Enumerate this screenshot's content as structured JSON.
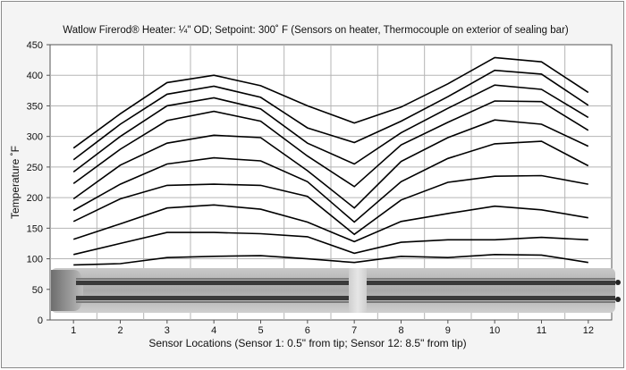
{
  "chart_data": {
    "type": "line",
    "title": "Watlow Firerod® Heater:  ¼\" OD; Setpoint: 300˚ F  (Sensors on heater, Thermocouple on exterior of sealing bar)",
    "xlabel": "Sensor Locations  (Sensor 1:  0.5\" from tip;  Sensor 12:  8.5\" from tip)",
    "ylabel": "Temperature ˚F",
    "x": [
      1,
      2,
      3,
      4,
      5,
      6,
      7,
      8,
      9,
      10,
      11,
      12
    ],
    "x_tick_labels": [
      "1",
      "2",
      "3",
      "4",
      "5",
      "6",
      "7",
      "8",
      "9",
      "10",
      "11",
      "12"
    ],
    "ylim": [
      0,
      450
    ],
    "y_ticks": [
      0,
      50,
      100,
      150,
      200,
      250,
      300,
      350,
      400,
      450
    ],
    "grid": true,
    "line_color": "#000000",
    "series": [
      {
        "values": [
          90,
          92,
          102,
          104,
          105,
          100,
          94,
          104,
          102,
          107,
          106,
          94
        ]
      },
      {
        "values": [
          107,
          125,
          143,
          143,
          141,
          136,
          109,
          127,
          131,
          131,
          135,
          131
        ]
      },
      {
        "values": [
          132,
          157,
          183,
          188,
          181,
          160,
          128,
          161,
          174,
          186,
          180,
          167
        ]
      },
      {
        "values": [
          161,
          198,
          220,
          222,
          220,
          202,
          140,
          196,
          225,
          235,
          236,
          222
        ]
      },
      {
        "values": [
          179,
          222,
          255,
          265,
          260,
          226,
          160,
          226,
          264,
          288,
          292,
          252
        ]
      },
      {
        "values": [
          198,
          253,
          289,
          302,
          298,
          244,
          183,
          259,
          298,
          327,
          320,
          284
        ]
      },
      {
        "values": [
          223,
          279,
          326,
          341,
          325,
          268,
          218,
          286,
          323,
          358,
          357,
          310
        ]
      },
      {
        "values": [
          242,
          300,
          350,
          363,
          345,
          289,
          255,
          306,
          346,
          384,
          377,
          331
        ]
      },
      {
        "values": [
          262,
          320,
          369,
          382,
          364,
          314,
          290,
          325,
          365,
          408,
          402,
          351
        ]
      },
      {
        "values": [
          281,
          337,
          388,
          400,
          383,
          350,
          322,
          348,
          386,
          429,
          422,
          372
        ]
      }
    ],
    "overlay_image": "heater-rod"
  }
}
